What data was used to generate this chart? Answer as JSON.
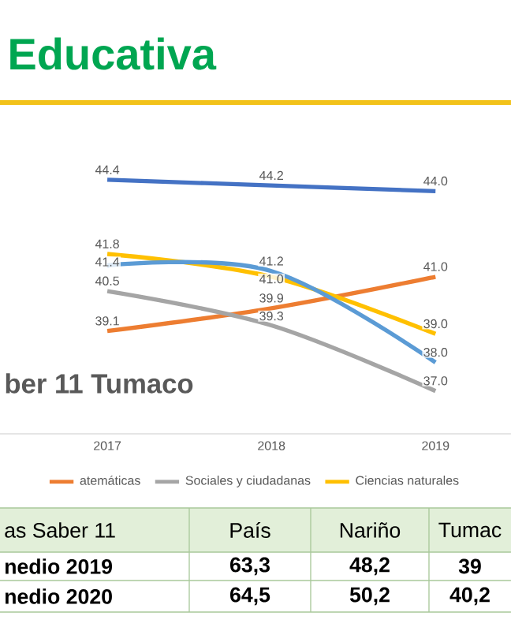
{
  "chart_data": {
    "type": "line",
    "title": "Educativa",
    "subtitle": "ber 11 Tumaco",
    "categories": [
      "2017",
      "2018",
      "2019"
    ],
    "series": [
      {
        "name": "atemáticas",
        "color": "#ed7d31",
        "values": [
          39.1,
          39.9,
          41.0
        ],
        "value_labels": [
          "39.1",
          "39.9",
          "41.0"
        ]
      },
      {
        "name": "Sociales y ciudadanas",
        "color": "#a5a5a5",
        "values": [
          40.5,
          39.3,
          37.0
        ],
        "value_labels": [
          "40.5",
          "39.3",
          "37.0"
        ]
      },
      {
        "name": "Ciencias naturales",
        "color": "#ffc000",
        "values": [
          41.8,
          41.0,
          39.0
        ],
        "value_labels": [
          "41.8",
          "41.0",
          "39.0"
        ]
      },
      {
        "color": "#5b9bd5",
        "values": [
          41.4,
          41.2,
          38.0
        ],
        "value_labels": [
          "41.4",
          "41.2",
          "38.0"
        ]
      },
      {
        "color": "#4472c4",
        "values": [
          44.4,
          44.2,
          44.0
        ],
        "value_labels": [
          "44.4",
          "44.2",
          "44.0"
        ]
      }
    ],
    "legend": "bottom",
    "tick_labels": "x",
    "annotations": [
      "as Saber 11",
      "País",
      "Nariño",
      "Tumac",
      "nedio 2019",
      "63,3",
      "48,2",
      "39",
      "nedio 2020",
      "64,5",
      "50,2",
      "40,2"
    ]
  }
}
